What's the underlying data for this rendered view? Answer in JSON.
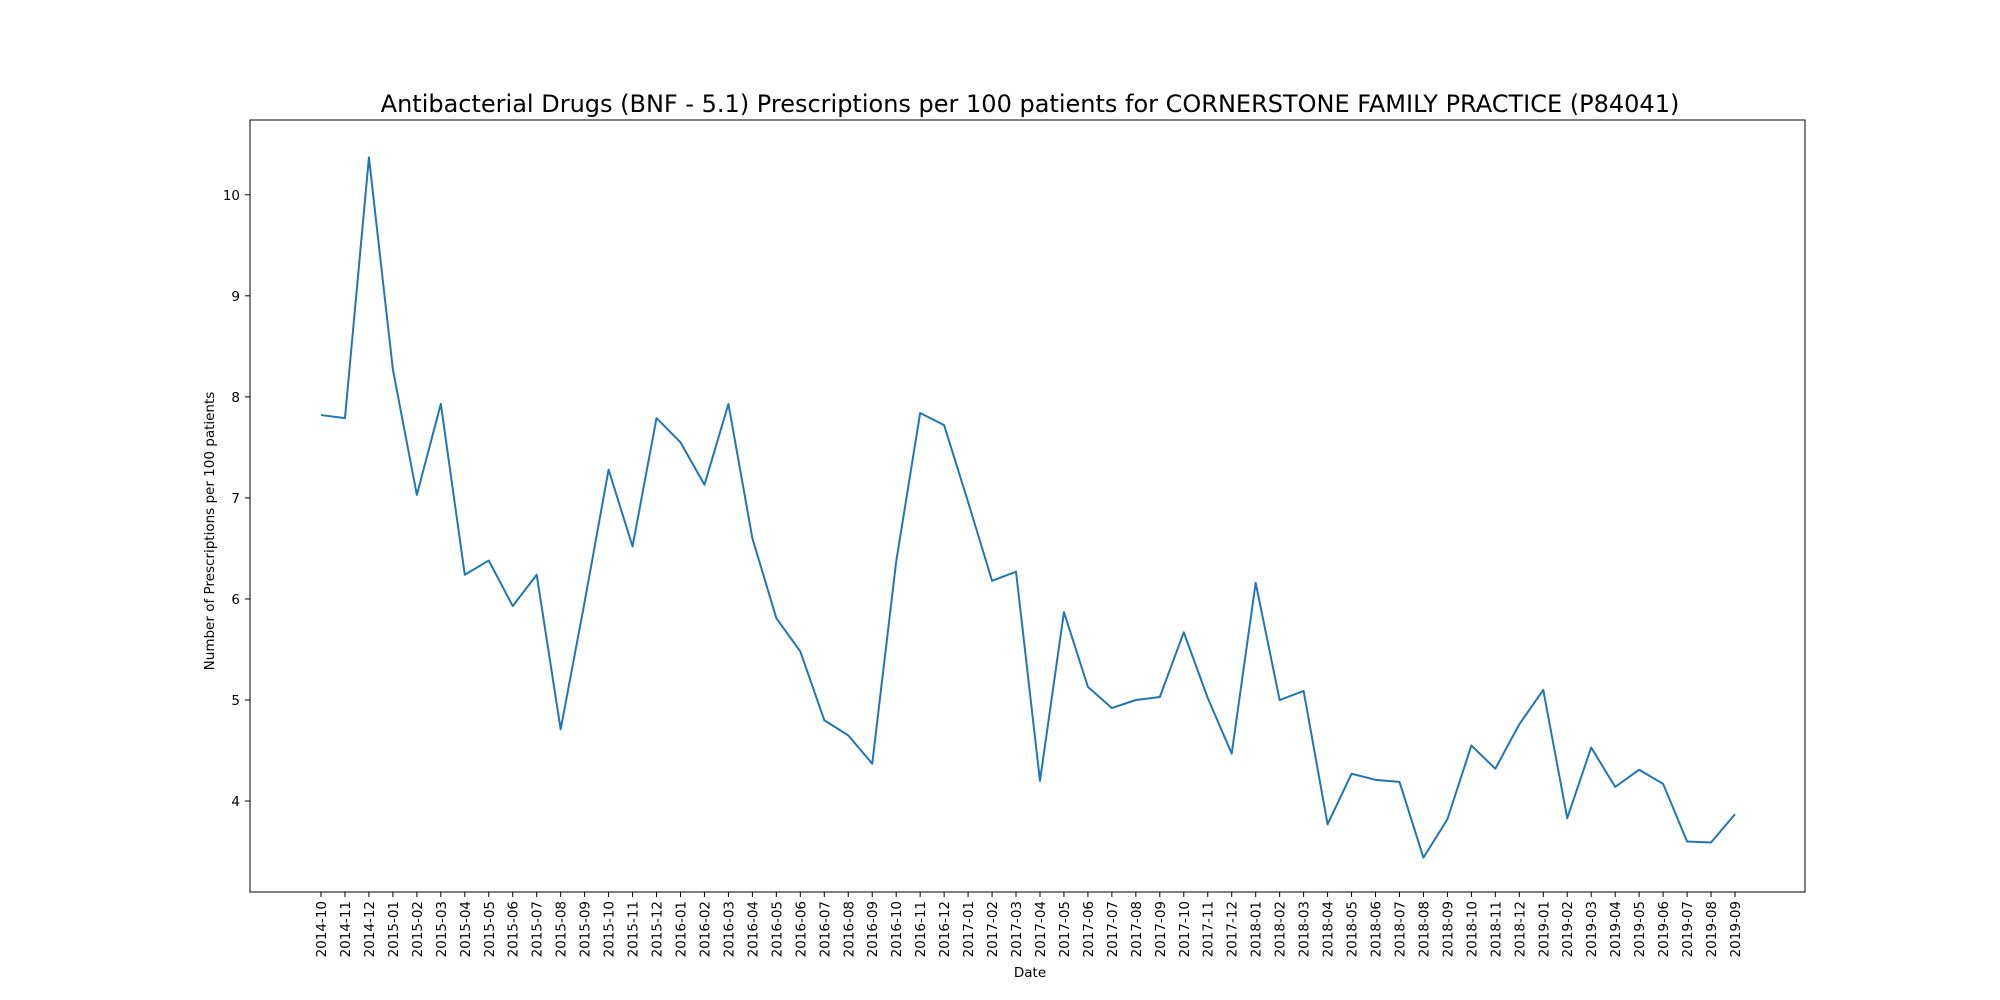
{
  "chart_data": {
    "type": "line",
    "title": "Antibacterial Drugs (BNF - 5.1) Prescriptions per 100 patients for CORNERSTONE FAMILY PRACTICE (P84041)",
    "xlabel": "Date",
    "ylabel": "Number of Prescriptions per 100 patients",
    "x": [
      "2014-10",
      "2014-11",
      "2014-12",
      "2015-01",
      "2015-02",
      "2015-03",
      "2015-04",
      "2015-05",
      "2015-06",
      "2015-07",
      "2015-08",
      "2015-09",
      "2015-10",
      "2015-11",
      "2015-12",
      "2016-01",
      "2016-02",
      "2016-03",
      "2016-04",
      "2016-05",
      "2016-06",
      "2016-07",
      "2016-08",
      "2016-09",
      "2016-10",
      "2016-11",
      "2016-12",
      "2017-01",
      "2017-02",
      "2017-03",
      "2017-04",
      "2017-05",
      "2017-06",
      "2017-07",
      "2017-08",
      "2017-09",
      "2017-10",
      "2017-11",
      "2017-12",
      "2018-01",
      "2018-02",
      "2018-03",
      "2018-04",
      "2018-05",
      "2018-06",
      "2018-07",
      "2018-08",
      "2018-09",
      "2018-10",
      "2018-11",
      "2018-12",
      "2019-01",
      "2019-02",
      "2019-03",
      "2019-04",
      "2019-05",
      "2019-06",
      "2019-07",
      "2019-08",
      "2019-09"
    ],
    "series": [
      {
        "values": [
          7.82,
          7.79,
          10.37,
          8.27,
          7.03,
          7.93,
          6.24,
          6.38,
          5.93,
          6.24,
          4.71,
          5.97,
          7.28,
          6.52,
          7.79,
          7.55,
          7.13,
          7.93,
          6.6,
          5.81,
          5.48,
          4.8,
          4.65,
          4.37,
          6.37,
          7.84,
          7.72,
          6.96,
          6.18,
          6.27,
          4.2,
          5.87,
          5.13,
          4.92,
          5.0,
          5.03,
          5.67,
          5.02,
          4.47,
          6.16,
          5.0,
          5.09,
          3.77,
          4.27,
          4.21,
          4.19,
          3.44,
          3.82,
          4.55,
          4.32,
          4.76,
          5.1,
          3.83,
          4.53,
          4.14,
          4.31,
          4.17,
          3.6,
          3.59,
          3.87
        ],
        "color": "#1f77b4"
      }
    ],
    "yticks": [
      4,
      5,
      6,
      7,
      8,
      9,
      10
    ],
    "ylim": [
      3.1,
      10.74
    ],
    "grid": false,
    "legend": "none"
  }
}
